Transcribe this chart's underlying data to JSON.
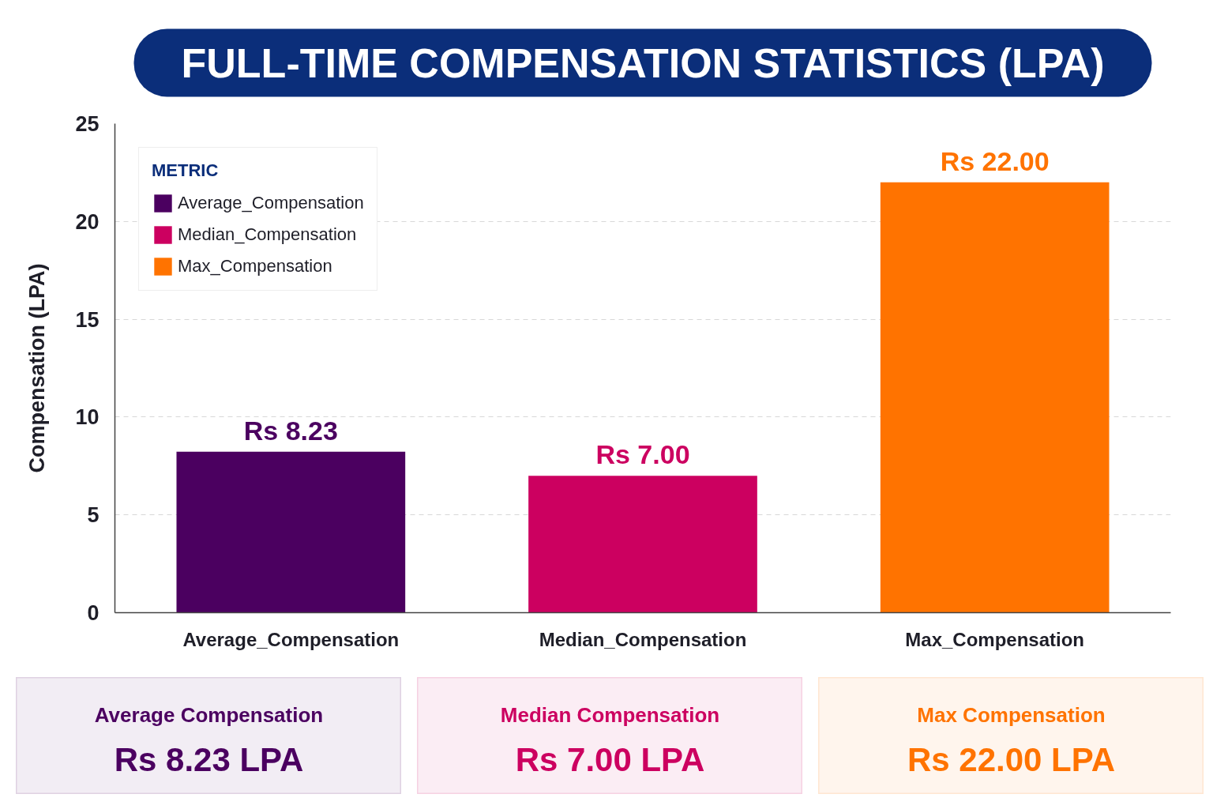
{
  "chart_data": [
    {
      "type": "bar",
      "title": "FULL-TIME COMPENSATION STATISTICS (LPA)",
      "ylabel": "Compensation (LPA)",
      "categories": [
        "Average_Compensation",
        "Median_Compensation",
        "Max_Compensation"
      ],
      "stacked": true,
      "series": [
        {
          "name": "Average_Compensation",
          "color": "#4b0060",
          "values": [
            8.23,
            null,
            null
          ],
          "value_labels": [
            "Rs 8.23",
            null,
            null
          ]
        },
        {
          "name": "Median_Compensation",
          "color": "#cc0060",
          "values": [
            null,
            7.0,
            null
          ],
          "value_labels": [
            null,
            "Rs 7.00",
            null
          ]
        },
        {
          "name": "Max_Compensation",
          "color": "#ff7300",
          "values": [
            null,
            null,
            22.0
          ],
          "value_labels": [
            null,
            null,
            "Rs 22.00"
          ]
        }
      ],
      "ylim": [
        0,
        25
      ],
      "yticks": [
        0,
        5,
        10,
        15,
        20,
        25
      ],
      "grid": "y",
      "legend": "top left",
      "legend_title": "METRIC"
    },
    {
      "type": "other",
      "title": "Average Compensation",
      "subtitle": "Rs 8.23 LPA",
      "color": "#4b0060"
    },
    {
      "type": "other",
      "title": "Median Compensation",
      "subtitle": "Rs 7.00 LPA",
      "color": "#cc0060"
    },
    {
      "type": "other",
      "title": "Max Compensation",
      "subtitle": "Rs 22.00 LPA",
      "color": "#ff7300"
    }
  ]
}
